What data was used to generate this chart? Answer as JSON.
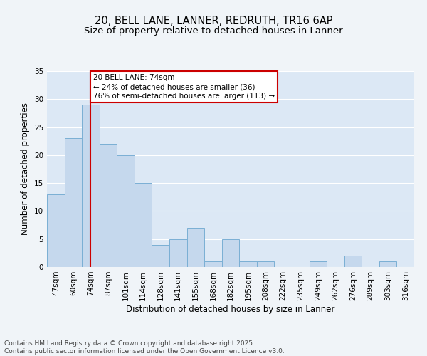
{
  "title_line1": "20, BELL LANE, LANNER, REDRUTH, TR16 6AP",
  "title_line2": "Size of property relative to detached houses in Lanner",
  "xlabel": "Distribution of detached houses by size in Lanner",
  "ylabel": "Number of detached properties",
  "categories": [
    "47sqm",
    "60sqm",
    "74sqm",
    "87sqm",
    "101sqm",
    "114sqm",
    "128sqm",
    "141sqm",
    "155sqm",
    "168sqm",
    "182sqm",
    "195sqm",
    "208sqm",
    "222sqm",
    "235sqm",
    "249sqm",
    "262sqm",
    "276sqm",
    "289sqm",
    "303sqm",
    "316sqm"
  ],
  "values": [
    13,
    23,
    29,
    22,
    20,
    15,
    4,
    5,
    7,
    1,
    5,
    1,
    1,
    0,
    0,
    1,
    0,
    2,
    0,
    1,
    0
  ],
  "bar_color": "#c5d8ed",
  "bar_edge_color": "#7aafd4",
  "highlight_bar_index": 2,
  "highlight_line_color": "#cc0000",
  "annotation_text": "20 BELL LANE: 74sqm\n← 24% of detached houses are smaller (36)\n76% of semi-detached houses are larger (113) →",
  "annotation_box_color": "#ffffff",
  "annotation_box_edge_color": "#cc0000",
  "ylim": [
    0,
    35
  ],
  "yticks": [
    0,
    5,
    10,
    15,
    20,
    25,
    30,
    35
  ],
  "background_color": "#dce8f5",
  "grid_color": "#ffffff",
  "footer_text": "Contains HM Land Registry data © Crown copyright and database right 2025.\nContains public sector information licensed under the Open Government Licence v3.0.",
  "title_fontsize": 10.5,
  "subtitle_fontsize": 9.5,
  "axis_label_fontsize": 8.5,
  "tick_fontsize": 7.5,
  "annotation_fontsize": 7.5,
  "footer_fontsize": 6.5
}
